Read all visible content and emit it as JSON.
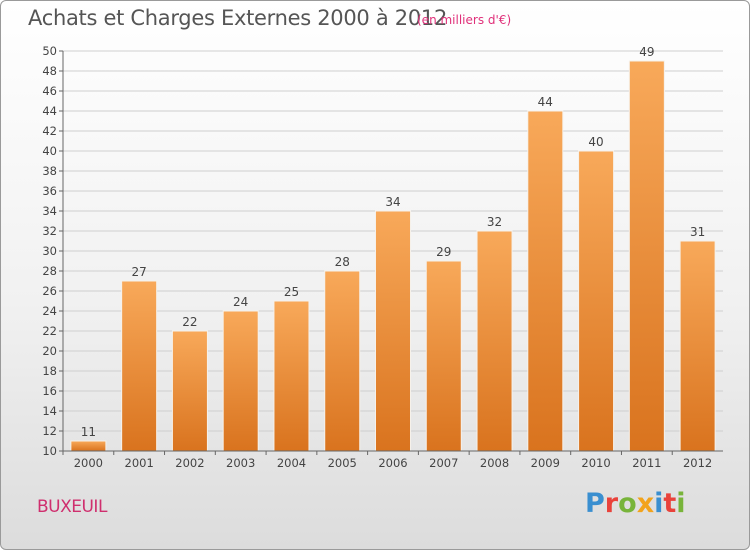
{
  "header": {
    "title": "Achats et Charges Externes 2000 à 2012",
    "subtitle": "(en milliers d'€)"
  },
  "footer": {
    "town": "BUXEUIL",
    "logo": "Proxiti",
    "logo_colors": [
      "#3a8fd0",
      "#e9423b",
      "#78b43a",
      "#f2a31b",
      "#3a8fd0",
      "#e9423b",
      "#78b43a"
    ]
  },
  "colors": {
    "bar_light": "#f8a95a",
    "bar_dark": "#d9731e",
    "grid": "#cfcfcf",
    "axis": "#666666",
    "text": "#444444"
  },
  "chart_data": {
    "type": "bar",
    "categories": [
      "2000",
      "2001",
      "2002",
      "2003",
      "2004",
      "2005",
      "2006",
      "2007",
      "2008",
      "2009",
      "2010",
      "2011",
      "2012"
    ],
    "values": [
      11,
      27,
      22,
      24,
      25,
      28,
      34,
      29,
      32,
      44,
      40,
      49,
      31
    ],
    "title": "Achats et Charges Externes 2000 à 2012",
    "xlabel": "",
    "ylabel": "",
    "ylim": [
      10,
      50
    ],
    "yticks": [
      10,
      12,
      14,
      16,
      18,
      20,
      22,
      24,
      26,
      28,
      30,
      32,
      34,
      36,
      38,
      40,
      42,
      44,
      46,
      48,
      50
    ],
    "grid": true,
    "data_labels": true
  }
}
